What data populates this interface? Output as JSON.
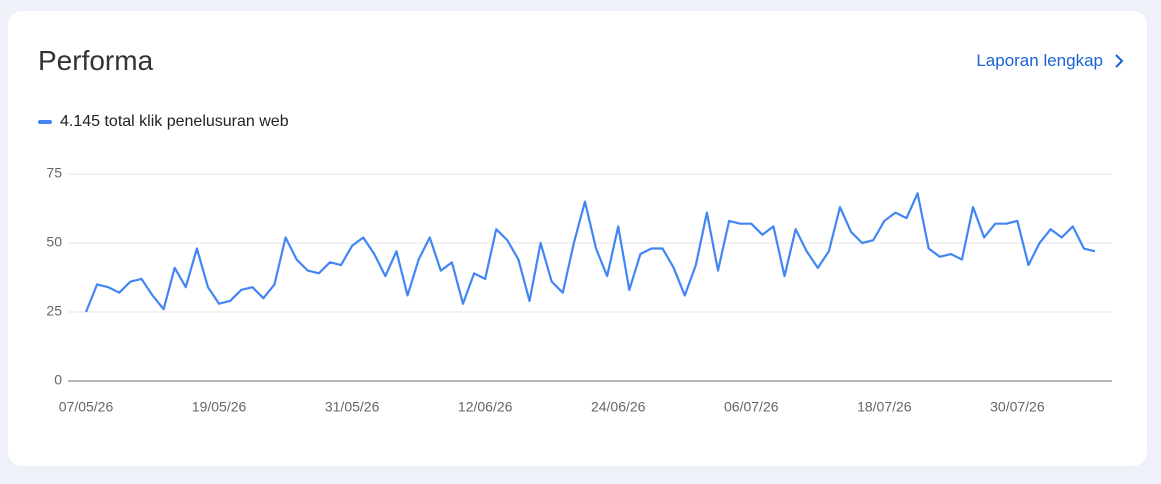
{
  "header": {
    "title": "Performa",
    "link": "Laporan lengkap"
  },
  "chart_data": {
    "type": "line",
    "categories": [
      "07/05/26",
      null,
      null,
      null,
      null,
      null,
      null,
      null,
      null,
      null,
      null,
      null,
      "19/05/26",
      null,
      null,
      null,
      null,
      null,
      null,
      null,
      null,
      null,
      null,
      null,
      "31/05/26",
      null,
      null,
      null,
      null,
      null,
      null,
      null,
      null,
      null,
      null,
      null,
      "12/06/26",
      null,
      null,
      null,
      null,
      null,
      null,
      null,
      null,
      null,
      null,
      null,
      "24/06/26",
      null,
      null,
      null,
      null,
      null,
      null,
      null,
      null,
      null,
      null,
      null,
      "06/07/26",
      null,
      null,
      null,
      null,
      null,
      null,
      null,
      null,
      null,
      null,
      null,
      "18/07/26",
      null,
      null,
      null,
      null,
      null,
      null,
      null,
      null,
      null,
      null,
      null,
      "30/07/26",
      null,
      null,
      null,
      null,
      null,
      null,
      null
    ],
    "series": [
      {
        "name": "4.145 total klik penelusuran web",
        "color": "#4285f4",
        "values": [
          25,
          35,
          34,
          32,
          36,
          37,
          31,
          26,
          41,
          34,
          48,
          34,
          28,
          29,
          33,
          34,
          30,
          35,
          52,
          44,
          40,
          39,
          43,
          42,
          49,
          52,
          46,
          38,
          47,
          31,
          44,
          52,
          40,
          43,
          28,
          39,
          37,
          55,
          51,
          44,
          29,
          50,
          36,
          32,
          50,
          65,
          48,
          38,
          56,
          33,
          46,
          48,
          48,
          41,
          31,
          42,
          61,
          40,
          58,
          57,
          57,
          53,
          56,
          38,
          55,
          47,
          41,
          47,
          63,
          54,
          50,
          51,
          58,
          61,
          59,
          68,
          48,
          45,
          46,
          44,
          63,
          52,
          57,
          57,
          58,
          42,
          50,
          55,
          52,
          56,
          48,
          47
        ]
      }
    ],
    "ylim": [
      0,
      75
    ],
    "yticks": [
      0,
      25,
      50,
      75
    ],
    "grid": true
  }
}
